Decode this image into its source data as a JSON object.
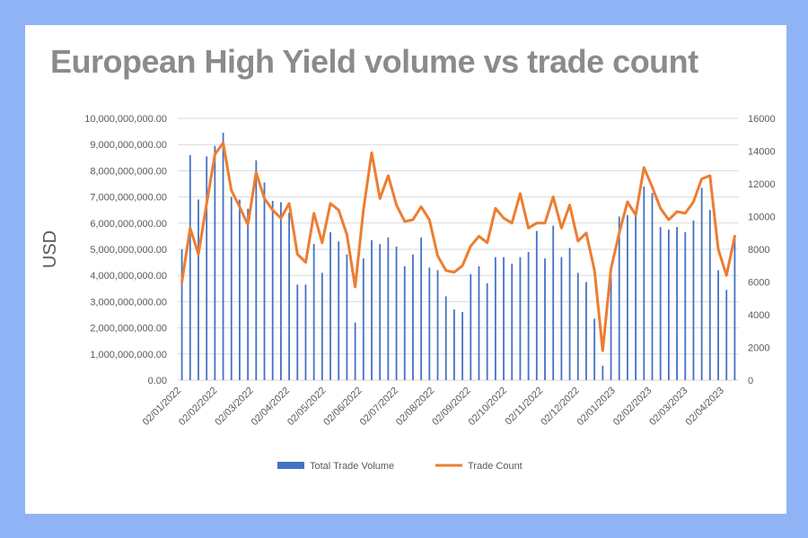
{
  "title": "European High Yield volume vs trade count",
  "chart_data": {
    "type": "bar",
    "title": "European High Yield volume vs trade count",
    "ylabel": "USD",
    "y_left": {
      "ylim": [
        0,
        10000000000
      ],
      "ticks": [
        "0.00",
        "1,000,000,000.00",
        "2,000,000,000.00",
        "3,000,000,000.00",
        "4,000,000,000.00",
        "5,000,000,000.00",
        "6,000,000,000.00",
        "7,000,000,000.00",
        "8,000,000,000.00",
        "9,000,000,000.00",
        "10,000,000,000.00"
      ]
    },
    "y_right": {
      "ylim": [
        0,
        16000
      ],
      "ticks": [
        "0",
        "2000",
        "4000",
        "6000",
        "8000",
        "10000",
        "12000",
        "14000",
        "16000"
      ]
    },
    "x_tick_labels": [
      "02/01/2022",
      "02/02/2022",
      "02/03/2022",
      "02/04/2022",
      "02/05/2022",
      "02/06/2022",
      "02/07/2022",
      "02/08/2022",
      "02/09/2022",
      "02/10/2022",
      "02/11/2022",
      "02/12/2022",
      "02/01/2023",
      "02/02/2023",
      "02/03/2023",
      "02/04/2023"
    ],
    "grid": true,
    "legend_position": "bottom",
    "series": [
      {
        "name": "Total Trade Volume",
        "type": "bar",
        "axis": "left",
        "color": "#4472c4",
        "values": [
          5000000000,
          8600000000,
          6900000000,
          8550000000,
          8950000000,
          9450000000,
          7000000000,
          6900000000,
          6550000000,
          8400000000,
          7550000000,
          6850000000,
          6800000000,
          6400000000,
          3650000000,
          3650000000,
          5200000000,
          4100000000,
          5650000000,
          5300000000,
          4800000000,
          2200000000,
          4650000000,
          5350000000,
          5200000000,
          5450000000,
          5100000000,
          4350000000,
          4800000000,
          5450000000,
          4300000000,
          4200000000,
          3200000000,
          2700000000,
          2600000000,
          4050000000,
          4350000000,
          3700000000,
          4700000000,
          4700000000,
          4450000000,
          4700000000,
          4900000000,
          5700000000,
          4650000000,
          5900000000,
          4700000000,
          5050000000,
          4100000000,
          3750000000,
          2350000000,
          550000000,
          3950000000,
          6250000000,
          6300000000,
          6400000000,
          7400000000,
          7150000000,
          5850000000,
          5750000000,
          5850000000,
          5650000000,
          6100000000,
          7350000000,
          6500000000,
          4200000000,
          3450000000,
          5450000000
        ]
      },
      {
        "name": "Trade Count",
        "type": "line",
        "axis": "right",
        "color": "#ed7d31",
        "values": [
          6000,
          9300,
          7700,
          10800,
          13800,
          14500,
          11600,
          10600,
          9500,
          12700,
          11100,
          10400,
          9900,
          10800,
          7700,
          7200,
          10200,
          8400,
          10800,
          10400,
          8900,
          5700,
          10400,
          13900,
          11100,
          12500,
          10700,
          9700,
          9800,
          10600,
          9800,
          7600,
          6700,
          6600,
          7000,
          8200,
          8800,
          8400,
          10500,
          9900,
          9600,
          11400,
          9300,
          9600,
          9600,
          11200,
          9300,
          10700,
          8500,
          9000,
          6700,
          1800,
          6800,
          9000,
          10900,
          10100,
          13000,
          11800,
          10500,
          9800,
          10300,
          10200,
          10900,
          12300,
          12500,
          8000,
          6400,
          8800
        ]
      }
    ]
  }
}
